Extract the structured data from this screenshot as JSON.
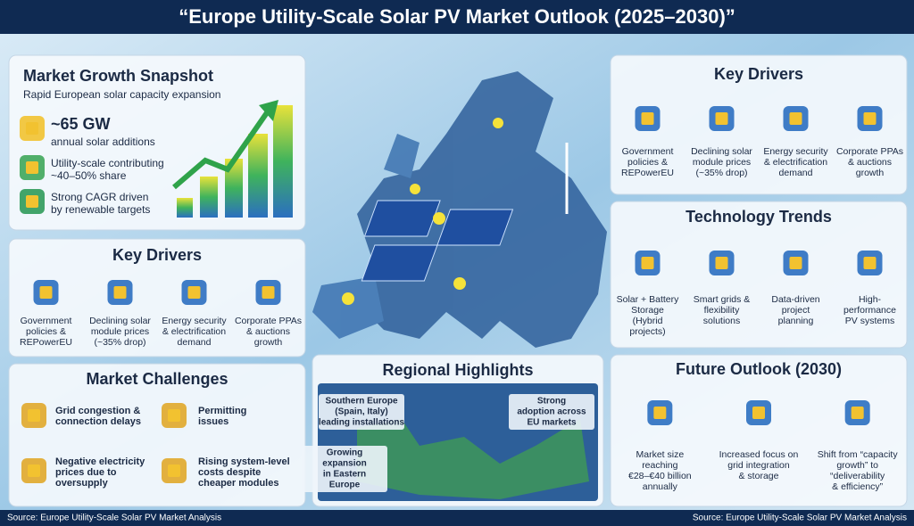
{
  "header": {
    "title": "“Europe Utility-Scale Solar PV Market Outlook (2025–2030)”"
  },
  "growth_snapshot": {
    "title": "Market Growth Snapshot",
    "subtitle": "Rapid European solar capacity expansion",
    "items": [
      {
        "lines": [
          "~65 GW",
          "annual solar additions"
        ]
      },
      {
        "lines": [
          "Utility-scale contributing",
          "~40–50% share"
        ]
      },
      {
        "lines": [
          "Strong CAGR driven",
          "by renewable targets"
        ]
      }
    ]
  },
  "key_drivers_left": {
    "title": "Key Drivers",
    "items": [
      {
        "lines": [
          "Government",
          "policies &",
          "REPowerEU"
        ]
      },
      {
        "lines": [
          "Declining solar",
          "module prices",
          "(~35% drop)"
        ]
      },
      {
        "lines": [
          "Energy security",
          "& electrification",
          "demand"
        ]
      },
      {
        "lines": [
          "Corporate PPAs",
          "& auctions",
          "growth"
        ]
      }
    ]
  },
  "market_challenges": {
    "title": "Market Challenges",
    "items": [
      {
        "lines": [
          "Grid congestion &",
          "connection delays"
        ]
      },
      {
        "lines": [
          "Permitting",
          "issues"
        ]
      },
      {
        "lines": [
          "Negative electricity",
          "prices due to",
          "oversupply"
        ]
      },
      {
        "lines": [
          "Rising system-level",
          "costs despite",
          "cheaper modules"
        ]
      }
    ]
  },
  "regional_highlights": {
    "title": "Regional Highlights",
    "labels": [
      {
        "lines": [
          "Southern Europe",
          "(Spain, Italy)",
          "leading installations"
        ]
      },
      {
        "lines": [
          "Strong",
          "adoption across",
          "EU markets"
        ]
      },
      {
        "lines": [
          "Growing",
          "expansion",
          "in Eastern",
          "Europe"
        ]
      }
    ]
  },
  "key_drivers_right": {
    "title": "Key Drivers",
    "items": [
      {
        "lines": [
          "Government",
          "policies &",
          "REPowerEU"
        ]
      },
      {
        "lines": [
          "Declining solar",
          "module prices",
          "(~35% drop)"
        ]
      },
      {
        "lines": [
          "Energy security",
          "& electrification",
          "demand"
        ]
      },
      {
        "lines": [
          "Corporate PPAs",
          "& auctions",
          "growth"
        ]
      }
    ]
  },
  "technology_trends": {
    "title": "Technology Trends",
    "items": [
      {
        "lines": [
          "Solar + Battery",
          "Storage",
          "(Hybrid",
          "projects)"
        ]
      },
      {
        "lines": [
          "Smart grids &",
          "flexibility",
          "solutions"
        ]
      },
      {
        "lines": [
          "Data-driven",
          "project",
          "planning"
        ]
      },
      {
        "lines": [
          "High-",
          "performance",
          "PV systems"
        ]
      }
    ]
  },
  "future_outlook": {
    "title": "Future Outlook (2030)",
    "items": [
      {
        "lines": [
          "Market size",
          "reaching",
          "€28–€40 billion",
          "annually"
        ]
      },
      {
        "lines": [
          "Increased focus on",
          "grid integration",
          "& storage"
        ]
      },
      {
        "lines": [
          "Shift from “capacity",
          "growth” to",
          "“deliverability",
          "& efficiency”"
        ]
      }
    ]
  },
  "footer": {
    "source_left": "Source: Europe Utility-Scale Solar PV Market Analysis",
    "source_right": "Source: Europe Utility-Scale Solar PV Market Analysis"
  }
}
